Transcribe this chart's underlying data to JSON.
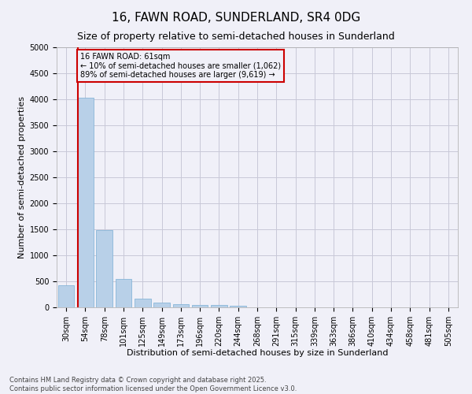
{
  "title": "16, FAWN ROAD, SUNDERLAND, SR4 0DG",
  "subtitle": "Size of property relative to semi-detached houses in Sunderland",
  "xlabel": "Distribution of semi-detached houses by size in Sunderland",
  "ylabel": "Number of semi-detached properties",
  "categories": [
    "30sqm",
    "54sqm",
    "78sqm",
    "101sqm",
    "125sqm",
    "149sqm",
    "173sqm",
    "196sqm",
    "220sqm",
    "244sqm",
    "268sqm",
    "291sqm",
    "315sqm",
    "339sqm",
    "363sqm",
    "386sqm",
    "410sqm",
    "434sqm",
    "458sqm",
    "481sqm",
    "505sqm"
  ],
  "values": [
    430,
    4030,
    1480,
    550,
    165,
    90,
    60,
    45,
    40,
    30,
    0,
    0,
    0,
    0,
    0,
    0,
    0,
    0,
    0,
    0,
    0
  ],
  "bar_color": "#b8d0e8",
  "bar_edgecolor": "#7aafd4",
  "vline_x_index": 0.6,
  "vline_color": "#cc0000",
  "annotation_line1": "16 FAWN ROAD: 61sqm",
  "annotation_line2": "← 10% of semi-detached houses are smaller (1,062)",
  "annotation_line3": "89% of semi-detached houses are larger (9,619) →",
  "annotation_box_edgecolor": "#cc0000",
  "ylim": [
    0,
    5000
  ],
  "yticks": [
    0,
    500,
    1000,
    1500,
    2000,
    2500,
    3000,
    3500,
    4000,
    4500,
    5000
  ],
  "footnote1": "Contains HM Land Registry data © Crown copyright and database right 2025.",
  "footnote2": "Contains public sector information licensed under the Open Government Licence v3.0.",
  "background_color": "#f0f0f8",
  "grid_color": "#c8c8d8",
  "title_fontsize": 11,
  "subtitle_fontsize": 9,
  "tick_fontsize": 7,
  "axis_label_fontsize": 8,
  "annotation_fontsize": 7,
  "footnote_fontsize": 6
}
